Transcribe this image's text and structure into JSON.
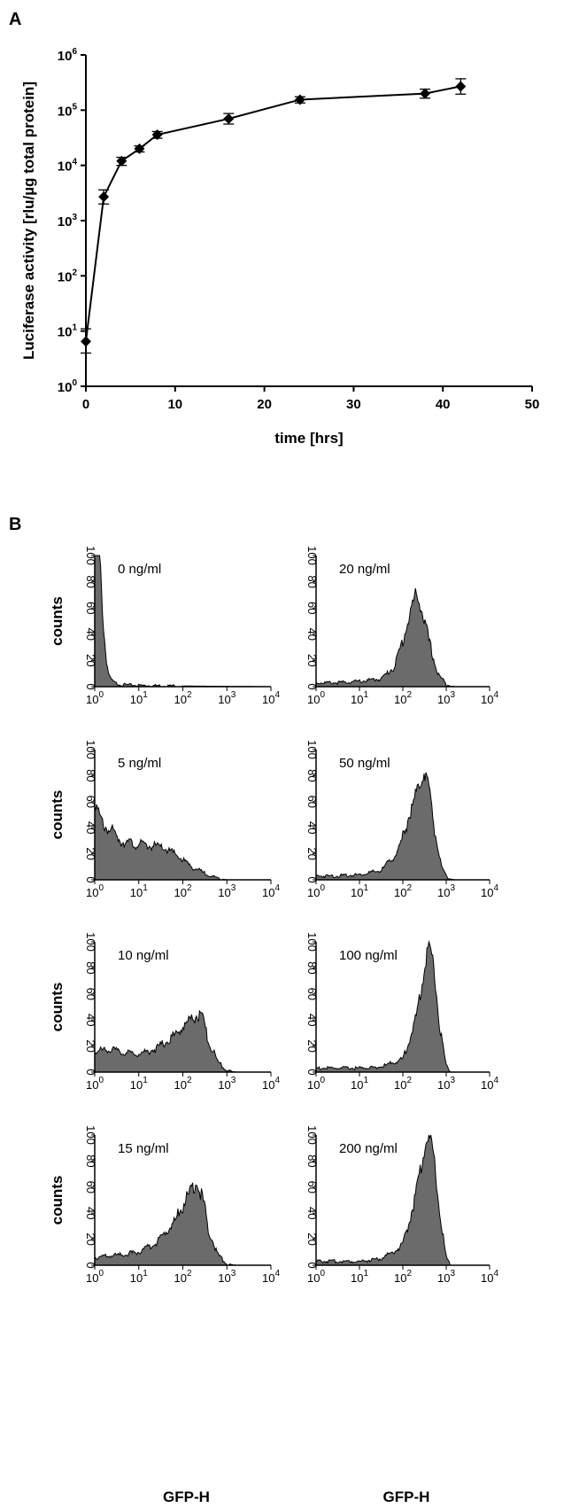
{
  "panel_labels": {
    "a": "A",
    "b": "B"
  },
  "chart_data": [
    {
      "type": "line",
      "panel": "A",
      "title": "",
      "xlabel": "time [hrs]",
      "ylabel": "Luciferase activity [rlu/µg total protein]",
      "y_scale": "log",
      "xlim": [
        0,
        50
      ],
      "ylim": [
        1,
        1000000
      ],
      "x_ticks": [
        "0",
        "10",
        "20",
        "30",
        "40",
        "50"
      ],
      "y_ticks": [
        {
          "base": "10",
          "exp": "0"
        },
        {
          "base": "10",
          "exp": "1"
        },
        {
          "base": "10",
          "exp": "2"
        },
        {
          "base": "10",
          "exp": "3"
        },
        {
          "base": "10",
          "exp": "4"
        },
        {
          "base": "10",
          "exp": "5"
        },
        {
          "base": "10",
          "exp": "6"
        }
      ],
      "marker": "diamond",
      "color": "#000000",
      "series": [
        {
          "x": [
            0,
            2,
            4,
            6,
            8,
            16,
            24,
            38,
            42
          ],
          "y": [
            6.5,
            2700,
            12000,
            20000,
            36000,
            70000,
            155000,
            200000,
            270000
          ],
          "err_low": [
            4,
            2000,
            10000,
            17500,
            31000,
            56000,
            135000,
            165000,
            195000
          ],
          "err_high": [
            11,
            3600,
            14000,
            22500,
            41000,
            87000,
            175000,
            240000,
            370000
          ]
        }
      ]
    },
    {
      "type": "area",
      "panel": "B",
      "xlabel": "GFP-H",
      "ylabel": "counts",
      "x_scale": "log",
      "xlim": [
        1,
        10000
      ],
      "ylim": [
        0,
        100
      ],
      "y_ticks": [
        "0",
        "20",
        "40",
        "60",
        "80",
        "100"
      ],
      "x_ticks": [
        {
          "base": "10",
          "exp": "0"
        },
        {
          "base": "10",
          "exp": "1"
        },
        {
          "base": "10",
          "exp": "2"
        },
        {
          "base": "10",
          "exp": "3"
        },
        {
          "base": "10",
          "exp": "4"
        }
      ],
      "fill_color": "#6b6b6b",
      "histograms": [
        {
          "label": "0 ng/ml",
          "profile": [
            [
              0,
              100
            ],
            [
              0.05,
              100
            ],
            [
              0.08,
              100
            ],
            [
              0.12,
              98
            ],
            [
              0.16,
              70
            ],
            [
              0.2,
              45
            ],
            [
              0.25,
              25
            ],
            [
              0.3,
              12
            ],
            [
              0.35,
              6
            ],
            [
              0.45,
              3
            ],
            [
              0.6,
              1.5
            ],
            [
              1,
              1
            ],
            [
              2,
              0.5
            ],
            [
              4,
              0
            ]
          ]
        },
        {
          "label": "20 ng/ml",
          "profile": [
            [
              0,
              3
            ],
            [
              0.5,
              3
            ],
            [
              1,
              4
            ],
            [
              1.5,
              6
            ],
            [
              1.8,
              15
            ],
            [
              2.0,
              35
            ],
            [
              2.2,
              60
            ],
            [
              2.3,
              71
            ],
            [
              2.4,
              63
            ],
            [
              2.6,
              35
            ],
            [
              2.8,
              10
            ],
            [
              3,
              2
            ],
            [
              3.2,
              0
            ],
            [
              4,
              0
            ]
          ]
        },
        {
          "label": "5 ng/ml",
          "profile": [
            [
              0,
              62
            ],
            [
              0.05,
              55
            ],
            [
              0.1,
              48
            ],
            [
              0.2,
              42
            ],
            [
              0.4,
              37
            ],
            [
              0.6,
              30
            ],
            [
              0.8,
              28
            ],
            [
              1,
              27
            ],
            [
              1.3,
              26
            ],
            [
              1.6,
              24
            ],
            [
              1.9,
              18
            ],
            [
              2.2,
              10
            ],
            [
              2.5,
              5
            ],
            [
              2.8,
              1
            ],
            [
              3.0,
              0
            ],
            [
              4,
              0
            ]
          ]
        },
        {
          "label": "50 ng/ml",
          "profile": [
            [
              0,
              3
            ],
            [
              0.5,
              3
            ],
            [
              1,
              4
            ],
            [
              1.5,
              7
            ],
            [
              1.9,
              22
            ],
            [
              2.2,
              55
            ],
            [
              2.4,
              75
            ],
            [
              2.5,
              83
            ],
            [
              2.6,
              72
            ],
            [
              2.75,
              35
            ],
            [
              2.9,
              8
            ],
            [
              3.05,
              1
            ],
            [
              3.2,
              0
            ],
            [
              4,
              0
            ]
          ]
        },
        {
          "label": "10 ng/ml",
          "profile": [
            [
              0,
              15
            ],
            [
              0.3,
              18
            ],
            [
              0.6,
              15
            ],
            [
              1.0,
              14
            ],
            [
              1.4,
              18
            ],
            [
              1.8,
              28
            ],
            [
              2.1,
              38
            ],
            [
              2.35,
              45
            ],
            [
              2.45,
              40
            ],
            [
              2.6,
              22
            ],
            [
              2.8,
              8
            ],
            [
              3.0,
              1
            ],
            [
              3.2,
              0
            ],
            [
              4,
              0
            ]
          ]
        },
        {
          "label": "100 ng/ml",
          "profile": [
            [
              0,
              3
            ],
            [
              0.5,
              3
            ],
            [
              1,
              3
            ],
            [
              1.5,
              4
            ],
            [
              2.0,
              10
            ],
            [
              2.3,
              40
            ],
            [
              2.5,
              80
            ],
            [
              2.6,
              99
            ],
            [
              2.7,
              85
            ],
            [
              2.85,
              35
            ],
            [
              3.0,
              5
            ],
            [
              3.1,
              0
            ],
            [
              4,
              0
            ]
          ]
        },
        {
          "label": "15 ng/ml",
          "profile": [
            [
              0,
              6
            ],
            [
              0.3,
              7
            ],
            [
              0.6,
              8
            ],
            [
              1.0,
              10
            ],
            [
              1.4,
              17
            ],
            [
              1.8,
              33
            ],
            [
              2.1,
              52
            ],
            [
              2.3,
              63
            ],
            [
              2.45,
              52
            ],
            [
              2.6,
              25
            ],
            [
              2.8,
              8
            ],
            [
              3.0,
              1
            ],
            [
              3.2,
              0
            ],
            [
              4,
              0
            ]
          ]
        },
        {
          "label": "200 ng/ml",
          "profile": [
            [
              0,
              3
            ],
            [
              0.5,
              3
            ],
            [
              1,
              3
            ],
            [
              1.5,
              5
            ],
            [
              2.0,
              15
            ],
            [
              2.3,
              55
            ],
            [
              2.5,
              90
            ],
            [
              2.6,
              99
            ],
            [
              2.7,
              88
            ],
            [
              2.85,
              40
            ],
            [
              3.0,
              6
            ],
            [
              3.1,
              0
            ],
            [
              4,
              0
            ]
          ]
        }
      ]
    }
  ]
}
